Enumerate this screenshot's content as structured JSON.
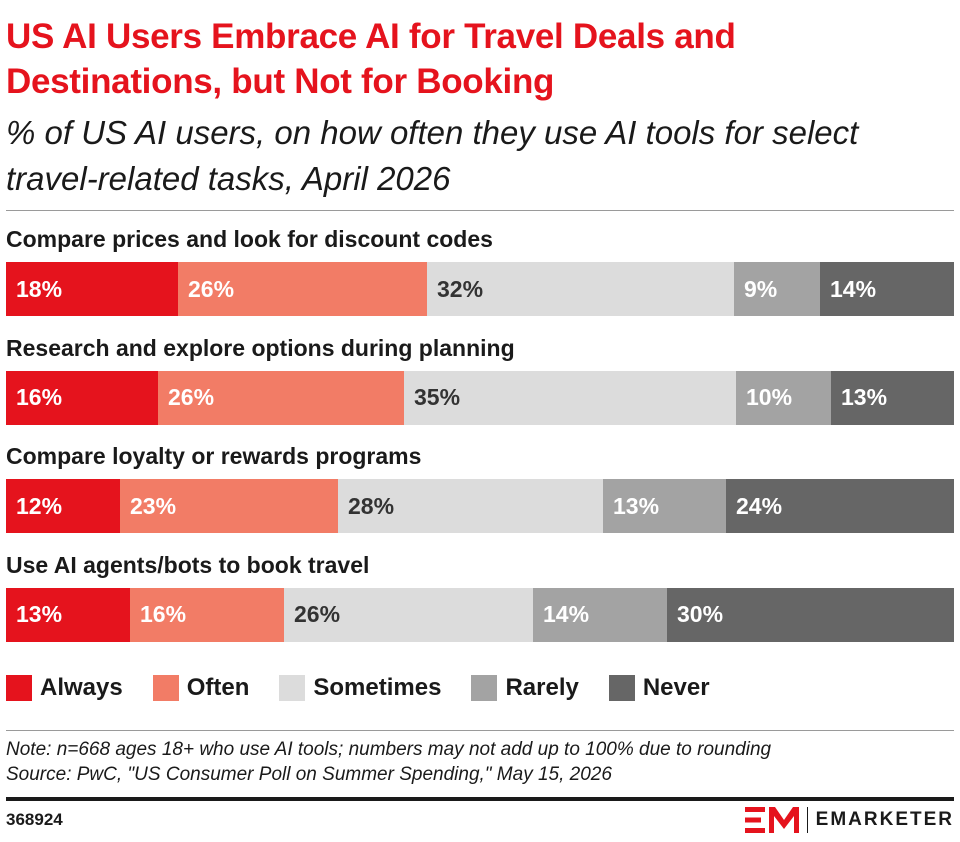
{
  "title": "US AI Users Embrace AI for Travel Deals and Destinations, but Not for Booking",
  "subtitle": "% of US AI users, on how often they use AI tools for select travel-related tasks, April 2026",
  "note": "Note: n=668 ages 18+ who use AI tools; numbers may not add up to 100% due to rounding",
  "source": "Source: PwC, \"US Consumer Poll on Summer Spending,\" May 15, 2026",
  "chart_id": "368924",
  "brand": "EMARKETER",
  "chart_data": {
    "type": "bar",
    "orientation": "horizontal",
    "stacked": true,
    "unit": "%",
    "legend_position": "bottom-left",
    "categories": [
      "Compare prices and look for discount codes",
      "Research and explore options during planning",
      "Compare loyalty or rewards programs",
      "Use AI agents/bots to book travel"
    ],
    "series": [
      {
        "name": "Always",
        "color": "#e5131d",
        "text_color": "#ffffff",
        "values": [
          18,
          16,
          12,
          13
        ]
      },
      {
        "name": "Often",
        "color": "#f27c66",
        "text_color": "#ffffff",
        "values": [
          26,
          26,
          23,
          16
        ]
      },
      {
        "name": "Sometimes",
        "color": "#dcdcdc",
        "text_color": "#333333",
        "values": [
          32,
          35,
          28,
          26
        ]
      },
      {
        "name": "Rarely",
        "color": "#a3a3a3",
        "text_color": "#ffffff",
        "values": [
          9,
          10,
          13,
          14
        ]
      },
      {
        "name": "Never",
        "color": "#666666",
        "text_color": "#ffffff",
        "values": [
          14,
          13,
          24,
          30
        ]
      }
    ]
  }
}
